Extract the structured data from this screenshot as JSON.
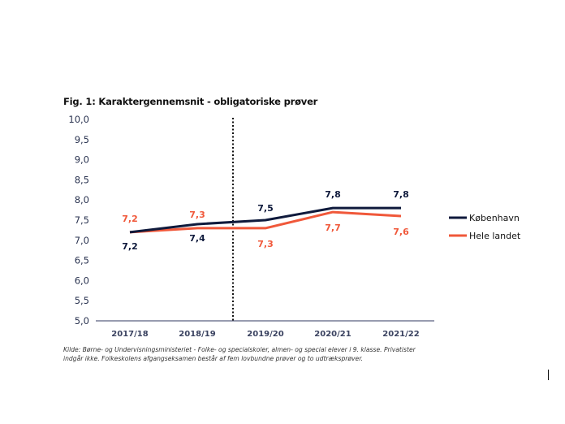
{
  "chart_data": {
    "type": "line",
    "title": "Fig. 1: Karaktergennemsnit - obligatoriske prøver",
    "categories": [
      "2017/18",
      "2018/19",
      "2019/20",
      "2020/21",
      "2021/22"
    ],
    "series": [
      {
        "name": "København",
        "color": "#0f1a3c",
        "values": [
          7.2,
          7.4,
          7.5,
          7.8,
          7.8
        ]
      },
      {
        "name": "Hele landet",
        "color": "#f0583a",
        "values": [
          7.2,
          7.3,
          7.3,
          7.7,
          7.6
        ]
      }
    ],
    "ylim": [
      5.0,
      10.0
    ],
    "yticks": [
      "5,0",
      "5,5",
      "6,0",
      "6,5",
      "7,0",
      "7,5",
      "8,0",
      "8,5",
      "9,0",
      "9,5",
      "10,0"
    ],
    "grid": false,
    "legend": "right",
    "annotation": "vertical dotted line between 2018/19 and 2019/20",
    "source": "Kilde: Børne- og Undervisningsministeriet - Folke- og specialskoler, almen- og special elever i 9. klasse. Privatister indgår ikke. Folkeskolens afgangseksamen består af fem lovbundne prøver og to udtræksprøver."
  }
}
